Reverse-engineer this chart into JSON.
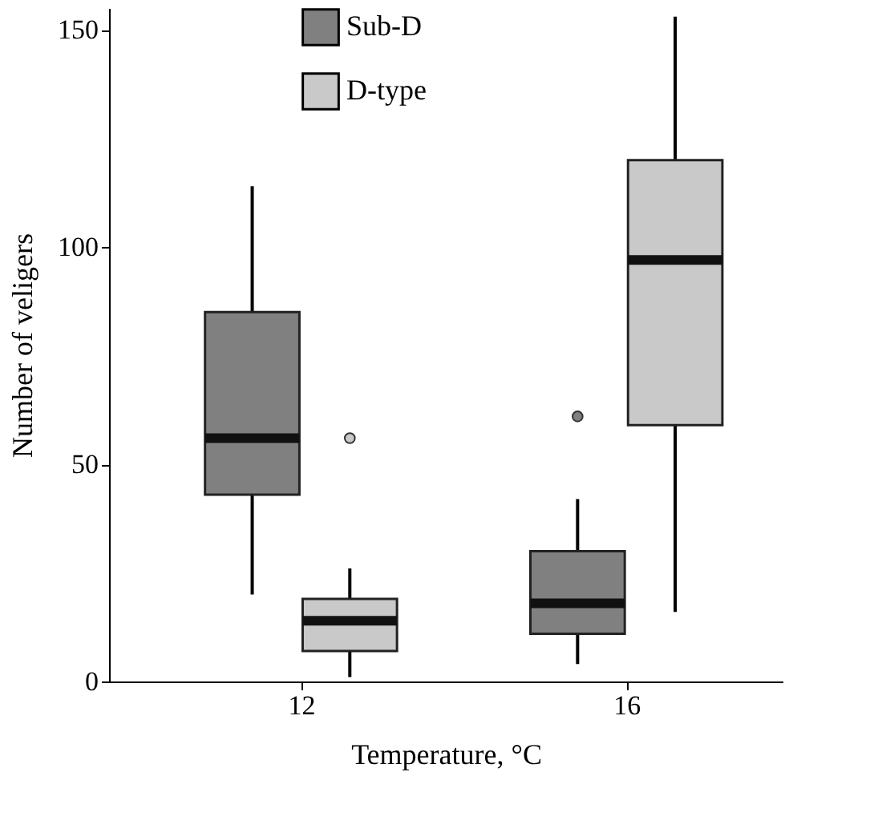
{
  "chart_data": {
    "type": "box",
    "xlabel": "Temperature, °C",
    "ylabel": "Number of veligers",
    "categories": [
      "12",
      "16"
    ],
    "series": [
      {
        "name": "Sub-D",
        "color": "#808080",
        "boxes": [
          {
            "low": 20,
            "q1": 43,
            "median": 56,
            "q3": 85,
            "high": 114
          },
          {
            "low": 4,
            "q1": 11,
            "median": 18,
            "q3": 30,
            "high": 42,
            "outliers": [
              61
            ]
          }
        ]
      },
      {
        "name": "D-type",
        "color": "#c8c9c8",
        "boxes": [
          {
            "low": 1,
            "q1": 7,
            "median": 14,
            "q3": 19,
            "high": 26,
            "outliers": [
              56
            ]
          },
          {
            "low": 16,
            "q1": 59,
            "median": 97,
            "q3": 120,
            "high": 153
          }
        ]
      }
    ],
    "ylim": [
      0,
      155
    ],
    "yticks": [
      0,
      50,
      100,
      150
    ],
    "grid": false,
    "legend": "top"
  }
}
